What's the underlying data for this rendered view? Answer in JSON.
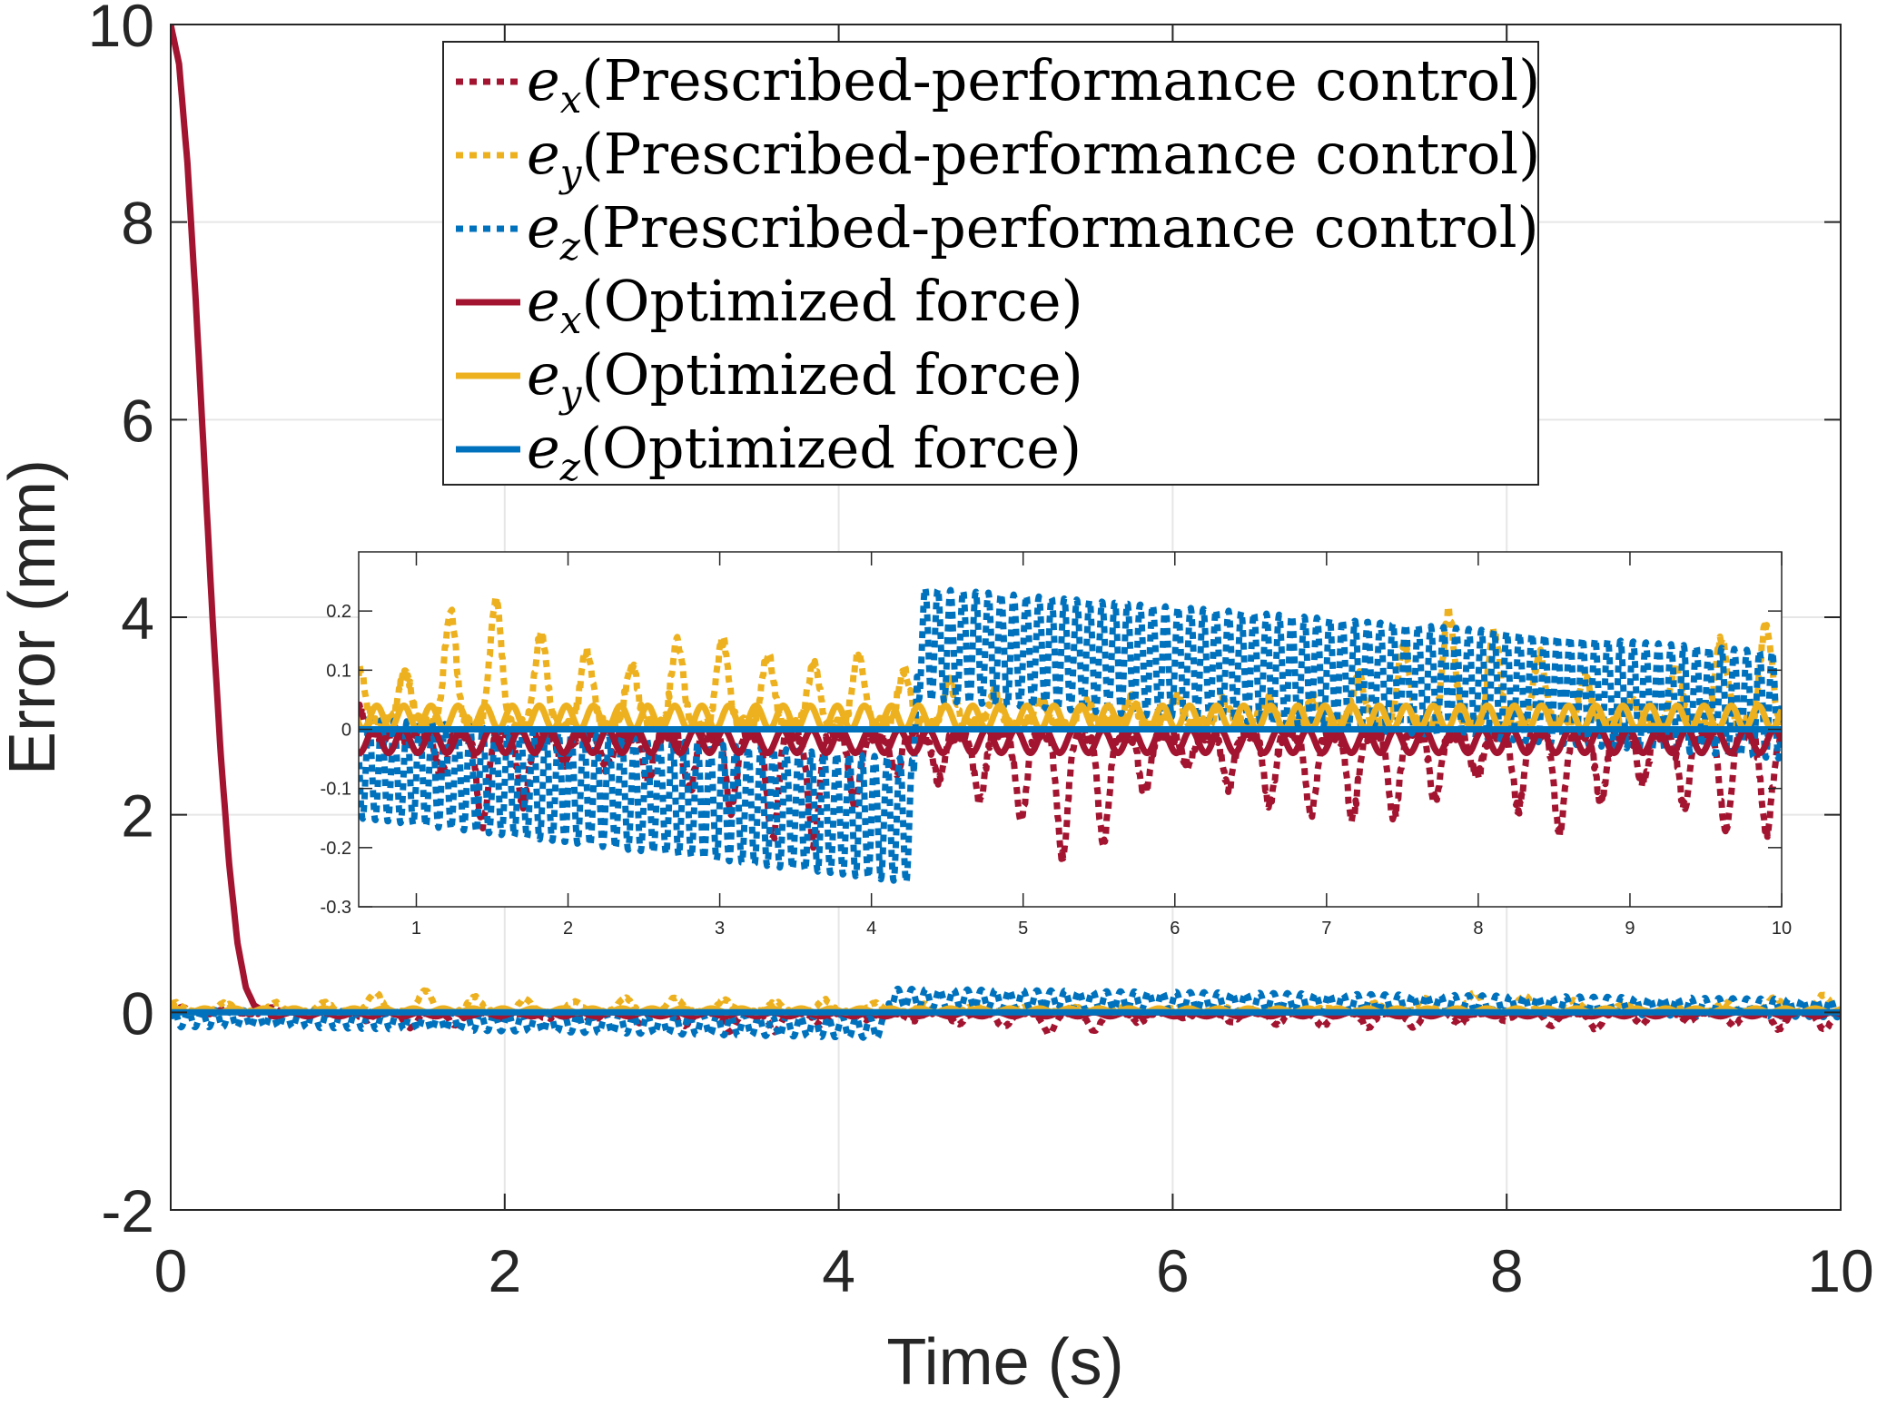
{
  "chart_data": {
    "type": "line",
    "title": "",
    "xlabel": "Time (s)",
    "ylabel": "Error (mm)",
    "xlim": [
      0,
      10
    ],
    "ylim": [
      -2,
      10
    ],
    "xticks": [
      "0",
      "2",
      "4",
      "6",
      "8",
      "10"
    ],
    "yticks": [
      "-2",
      "0",
      "2",
      "4",
      "6",
      "8",
      "10"
    ],
    "grid": true,
    "legend_position": "top-center",
    "colors": {
      "ex": "#A2142F",
      "ey": "#EDB120",
      "ez": "#0072BD"
    },
    "legend": [
      {
        "symbol": "e",
        "sub": "x",
        "text": "(Prescribed-performance control)",
        "style": "dotted",
        "color_key": "ex"
      },
      {
        "symbol": "e",
        "sub": "y",
        "text": "(Prescribed-performance control)",
        "style": "dotted",
        "color_key": "ey"
      },
      {
        "symbol": "e",
        "sub": "z",
        "text": "(Prescribed-performance control)",
        "style": "dotted",
        "color_key": "ez"
      },
      {
        "symbol": "e",
        "sub": "x",
        "text": "(Optimized force)",
        "style": "solid",
        "color_key": "ex"
      },
      {
        "symbol": "e",
        "sub": "y",
        "text": "(Optimized force)",
        "style": "solid",
        "color_key": "ey"
      },
      {
        "symbol": "e",
        "sub": "z",
        "text": "(Optimized force)",
        "style": "solid",
        "color_key": "ez"
      }
    ],
    "series": [
      {
        "name": "e_x (Prescribed-performance control)",
        "style": "dotted",
        "color_key": "ex",
        "description": "starts ~0.05, oscillating negative dips down to about -0.25 mm, mean slightly below 0",
        "x": [
          0.6,
          1.0,
          1.5,
          2.0,
          2.5,
          3.0,
          3.5,
          4.0,
          4.3,
          4.5,
          5.0,
          5.1,
          5.5,
          6.0,
          6.5,
          7.0,
          7.5,
          8.0,
          8.5,
          9.0,
          9.5,
          9.8,
          10.0
        ],
        "y": [
          0.05,
          -0.03,
          -0.18,
          -0.05,
          -0.08,
          -0.12,
          -0.22,
          -0.1,
          -0.05,
          -0.1,
          -0.15,
          -0.22,
          -0.2,
          -0.05,
          -0.12,
          -0.15,
          -0.15,
          -0.08,
          -0.18,
          -0.08,
          -0.15,
          -0.2,
          -0.15
        ]
      },
      {
        "name": "e_y (Prescribed-performance control)",
        "style": "dotted",
        "color_key": "ey",
        "description": "positive spikes up to ~0.22 mm in first seconds, mostly 0 to 0.1 later",
        "x": [
          0.6,
          1.0,
          1.1,
          1.35,
          1.55,
          2.0,
          2.2,
          2.5,
          2.7,
          2.85,
          3.15,
          3.5,
          3.9,
          4.2,
          5.0,
          6.0,
          7.0,
          7.8,
          8.0,
          9.0,
          9.85,
          10.0
        ],
        "y": [
          0.1,
          0.1,
          0.2,
          0.2,
          0.22,
          0.12,
          0.14,
          0.1,
          0.15,
          0.15,
          0.15,
          0.1,
          0.13,
          0.1,
          0.05,
          0.05,
          0.05,
          0.2,
          0.18,
          0.05,
          0.2,
          0.13
        ]
      },
      {
        "name": "e_z (Prescribed-performance control)",
        "style": "dotted",
        "color_key": "ez",
        "description": "high-frequency band; 0 to -0.15 at t=0.6 drifting to -0.05 to -0.26 at t=4.28, then jumps to band 0.05 to 0.24 at t=4.3 drifting down to -0.05 to 0.13 at t=10",
        "band_upper_x": [
          0.6,
          4.28,
          4.3,
          10.0
        ],
        "band_upper_y": [
          0.02,
          -0.05,
          0.24,
          0.13
        ],
        "band_lower_x": [
          0.6,
          4.28,
          4.3,
          10.0
        ],
        "band_lower_y": [
          -0.15,
          -0.26,
          0.05,
          -0.05
        ]
      },
      {
        "name": "e_x (Optimized force)",
        "style": "solid",
        "color_key": "ex",
        "description": "exponential decay from 10 mm at t=0 to ~0 by t=0.55, then small oscillation between 0 and -0.04",
        "x": [
          0,
          0.05,
          0.1,
          0.15,
          0.2,
          0.25,
          0.3,
          0.35,
          0.4,
          0.45,
          0.5,
          0.55,
          0.6,
          10
        ],
        "y": [
          10,
          9.6,
          8.6,
          7.2,
          5.6,
          4.0,
          2.6,
          1.5,
          0.7,
          0.25,
          0.07,
          0.02,
          0.0,
          -0.02
        ]
      },
      {
        "name": "e_y (Optimized force)",
        "style": "solid",
        "color_key": "ey",
        "description": "small oscillation between 0 and +0.04 mm",
        "x": [
          0,
          10
        ],
        "y": [
          0.02,
          0.02
        ]
      },
      {
        "name": "e_z (Optimized force)",
        "style": "solid",
        "color_key": "ez",
        "description": "flat at 0 mm",
        "x": [
          0,
          10
        ],
        "y": [
          0,
          0
        ]
      }
    ],
    "inset": {
      "xlim": [
        0.62,
        10
      ],
      "ylim": [
        -0.3,
        0.3
      ],
      "xticks": [
        "1",
        "2",
        "3",
        "4",
        "5",
        "6",
        "7",
        "8",
        "9",
        "10"
      ],
      "yticks": [
        "-0.3",
        "-0.2",
        "-0.1",
        "0",
        "0.1",
        "0.2"
      ],
      "jump_time": 4.28
    }
  }
}
